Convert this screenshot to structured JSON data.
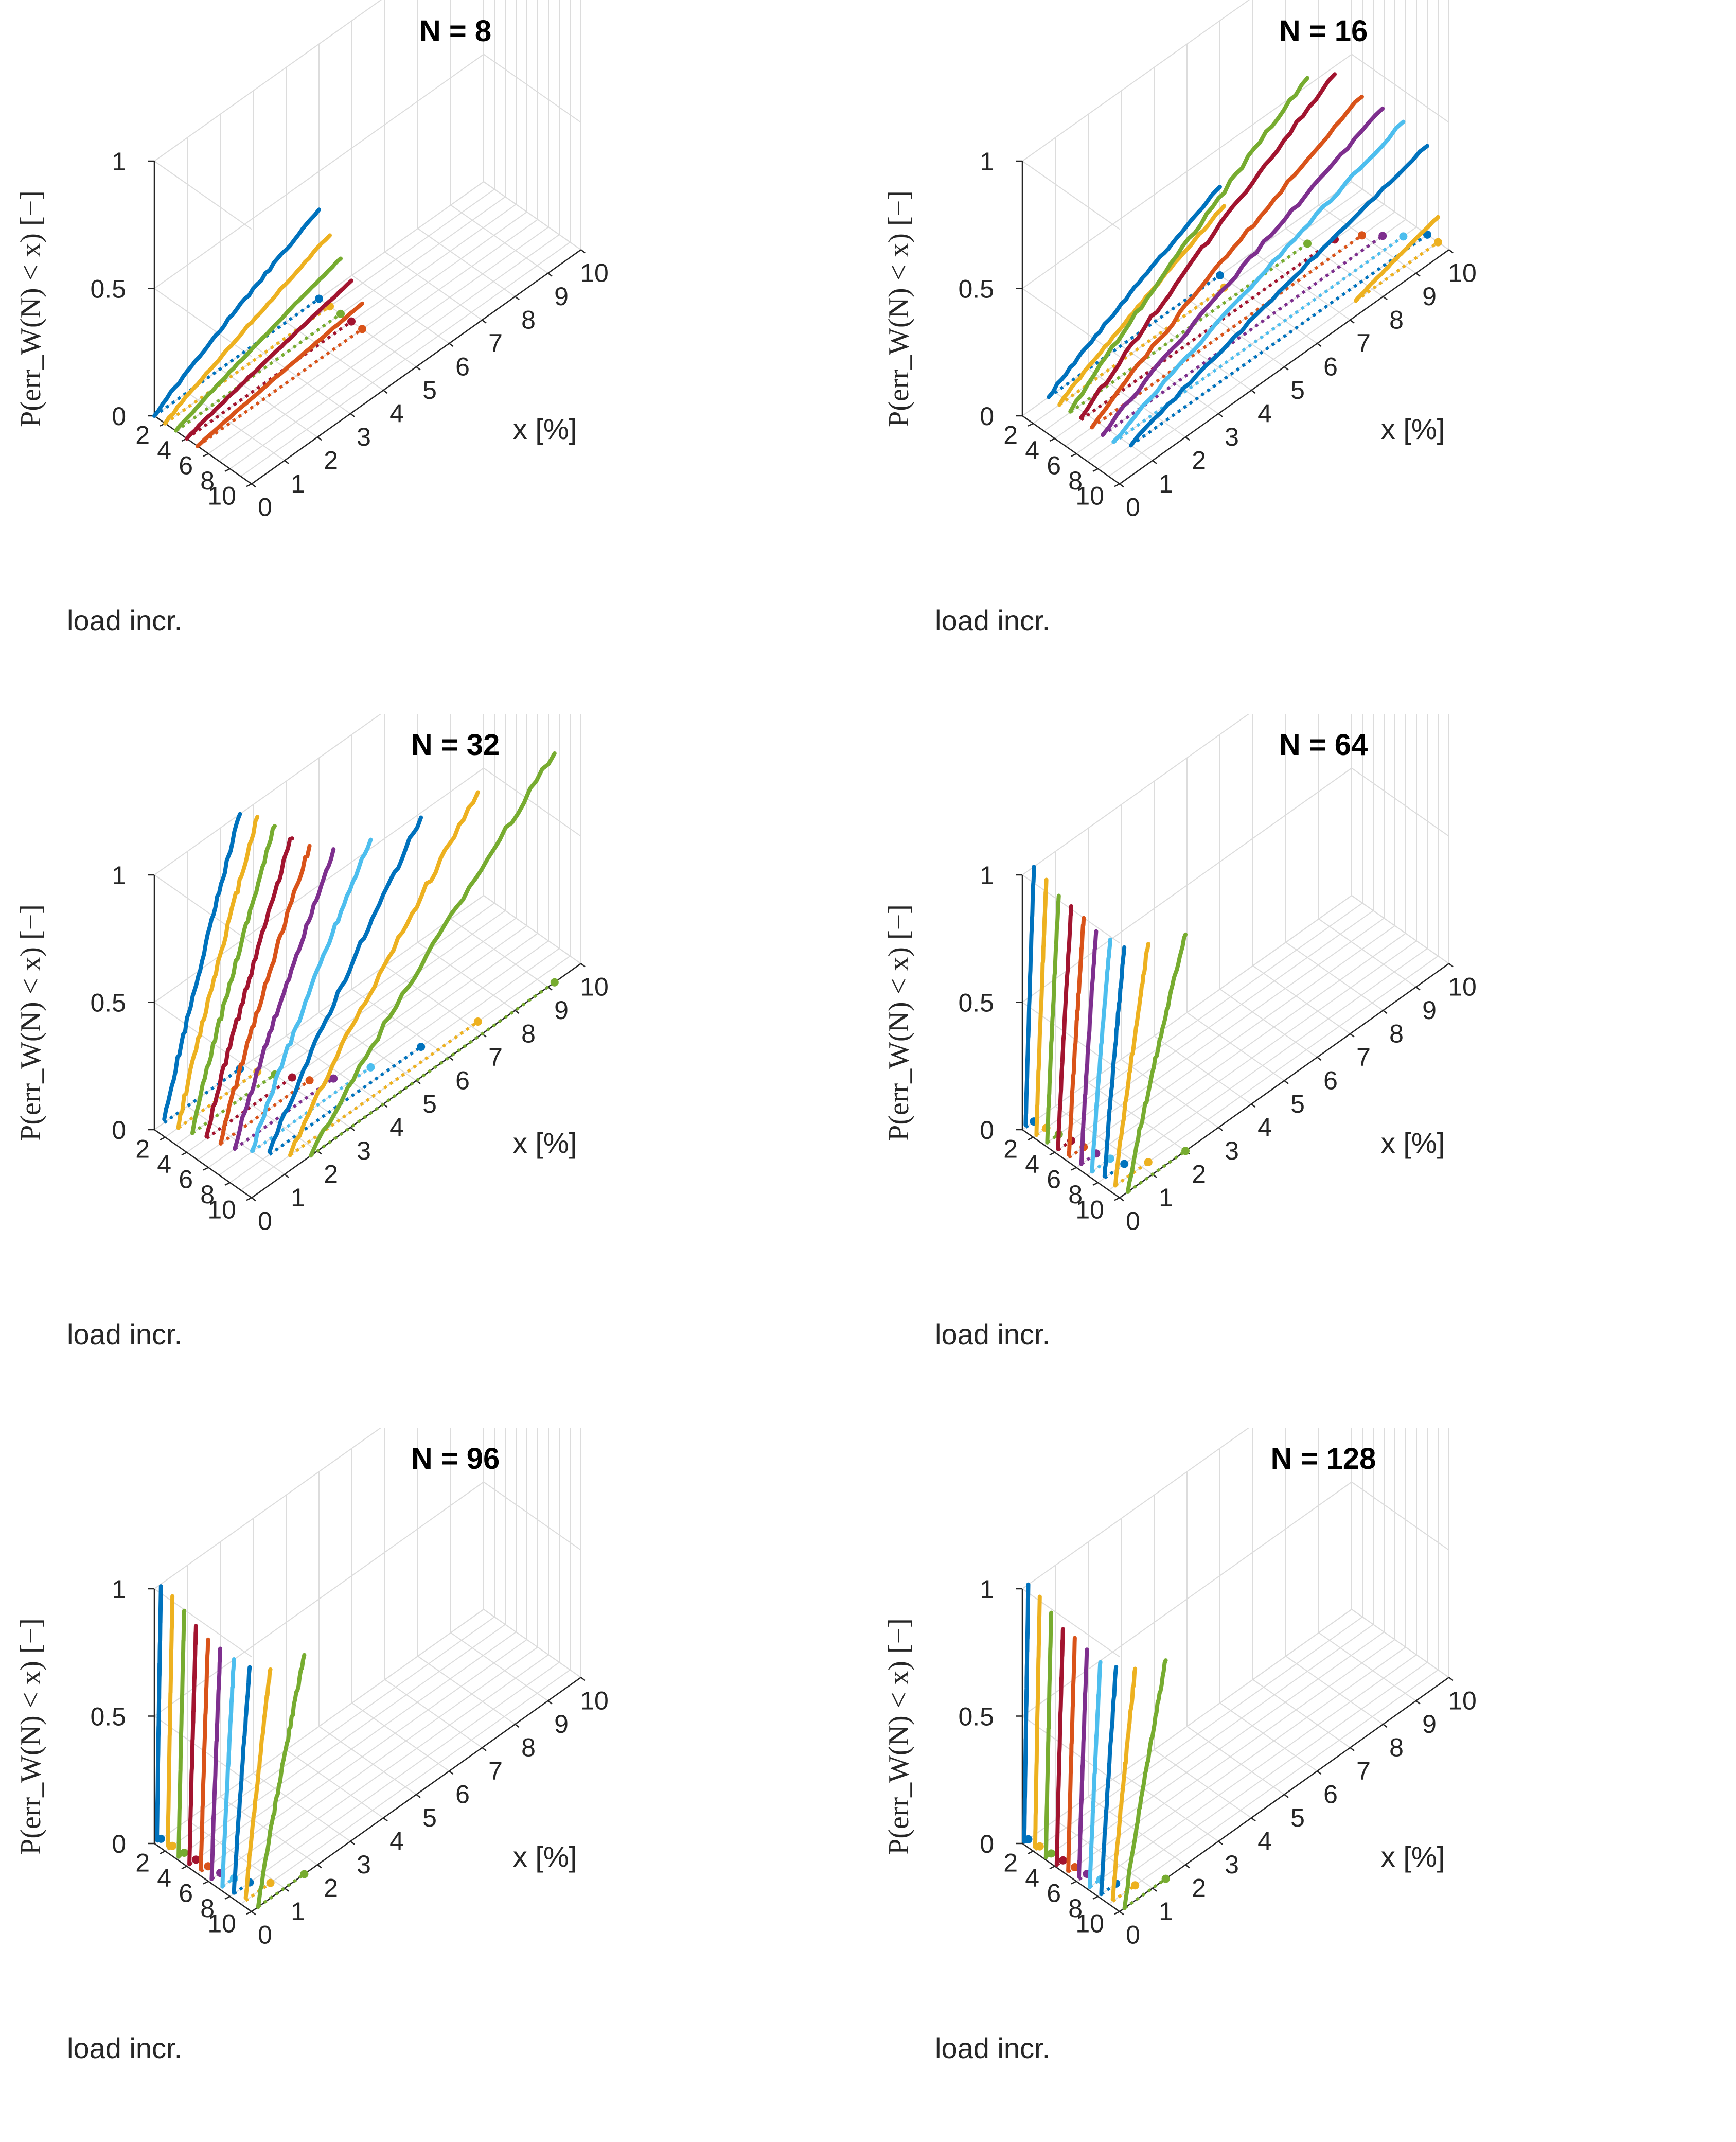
{
  "figure": {
    "ylabel": "P(err_W(N) < x) [−]",
    "xlabel": "x [%]",
    "depth_label": "load incr.",
    "series_colors": [
      "#0072BD",
      "#EDB120",
      "#77AC30",
      "#A2142F",
      "#D95319",
      "#7E2F8E",
      "#4DBEEE",
      "#0072BD",
      "#EDB120",
      "#77AC30"
    ]
  },
  "chart_data": [
    {
      "type": "line3d",
      "title": "N = 8",
      "xlabel": "x [%]",
      "ylabel": "load incr.",
      "zlabel": "P(err_W(N) < x) [−]",
      "xlim": [
        0,
        10
      ],
      "ylim": [
        1,
        10
      ],
      "zlim": [
        0,
        1
      ],
      "xticks": [
        "0",
        "1",
        "2",
        "3",
        "4",
        "5",
        "6",
        "7",
        "8",
        "9",
        "10"
      ],
      "yticks": [
        "2",
        "4",
        "6",
        "8",
        "10"
      ],
      "zticks": [
        "0",
        "0.5",
        "1"
      ],
      "series": [
        {
          "name": "load incr. 1",
          "load_increment": 1,
          "x_start": 0,
          "x_end": 5.0,
          "p_max": 0.35
        },
        {
          "name": "load incr. 2",
          "load_increment": 2,
          "x_start": 0,
          "x_end": 5.0,
          "p_max": 0.28
        },
        {
          "name": "load incr. 3",
          "load_increment": 3,
          "x_start": 0,
          "x_end": 5.0,
          "p_max": 0.22
        },
        {
          "name": "load incr. 4",
          "load_increment": 4,
          "x_start": 0,
          "x_end": 5.0,
          "p_max": 0.16
        },
        {
          "name": "load incr. 5",
          "load_increment": 5,
          "x_start": 0,
          "x_end": 5.0,
          "p_max": 0.1
        }
      ]
    },
    {
      "type": "line3d",
      "title": "N = 16",
      "xlabel": "x [%]",
      "ylabel": "load incr.",
      "zlabel": "P(err_W(N) < x) [−]",
      "xlim": [
        0,
        10
      ],
      "ylim": [
        1,
        10
      ],
      "zlim": [
        0,
        1
      ],
      "xticks": [
        "0",
        "1",
        "2",
        "3",
        "4",
        "5",
        "6",
        "7",
        "8",
        "9",
        "10"
      ],
      "yticks": [
        "2",
        "4",
        "6",
        "8",
        "10"
      ],
      "zticks": [
        "0",
        "0.5",
        "1"
      ],
      "series": [
        {
          "name": "load incr. 1",
          "load_increment": 1,
          "x_start": 0.8,
          "x_end": 6.0,
          "p_max": 0.35
        },
        {
          "name": "load incr. 2",
          "load_increment": 2,
          "x_start": 0.8,
          "x_end": 5.8,
          "p_max": 0.32
        },
        {
          "name": "load incr. 3",
          "load_increment": 3,
          "x_start": 0.8,
          "x_end": 8.0,
          "p_max": 0.65
        },
        {
          "name": "load incr. 4",
          "load_increment": 4,
          "x_start": 0.8,
          "x_end": 8.5,
          "p_max": 0.65
        },
        {
          "name": "load incr. 5",
          "load_increment": 5,
          "x_start": 0.8,
          "x_end": 9.0,
          "p_max": 0.55
        },
        {
          "name": "load incr. 6",
          "load_increment": 6,
          "x_start": 0.8,
          "x_end": 9.3,
          "p_max": 0.5
        },
        {
          "name": "load incr. 7",
          "load_increment": 7,
          "x_start": 0.8,
          "x_end": 9.6,
          "p_max": 0.45
        },
        {
          "name": "load incr. 8",
          "load_increment": 8,
          "x_start": 1.0,
          "x_end": 10.0,
          "p_max": 0.35
        },
        {
          "name": "load incr. 9",
          "load_increment": 9,
          "x_start": 7.5,
          "x_end": 10.0,
          "p_max": 0.1
        }
      ]
    },
    {
      "type": "line3d",
      "title": "N = 32",
      "xlabel": "x [%]",
      "ylabel": "load incr.",
      "zlabel": "P(err_W(N) < x) [−]",
      "xlim": [
        0,
        10
      ],
      "ylim": [
        1,
        10
      ],
      "zlim": [
        0,
        1
      ],
      "xticks": [
        "0",
        "1",
        "2",
        "3",
        "4",
        "5",
        "6",
        "7",
        "8",
        "9",
        "10"
      ],
      "yticks": [
        "2",
        "4",
        "6",
        "8",
        "10"
      ],
      "zticks": [
        "0",
        "0.5",
        "1"
      ],
      "series": [
        {
          "name": "load incr. 1",
          "load_increment": 1,
          "x_start": 0.3,
          "x_end": 2.6,
          "p_max": 1.0
        },
        {
          "name": "load incr. 2",
          "load_increment": 2,
          "x_start": 0.4,
          "x_end": 2.8,
          "p_max": 1.0
        },
        {
          "name": "load incr. 3",
          "load_increment": 3,
          "x_start": 0.5,
          "x_end": 3.0,
          "p_max": 0.98
        },
        {
          "name": "load incr. 4",
          "load_increment": 4,
          "x_start": 0.6,
          "x_end": 3.2,
          "p_max": 0.95
        },
        {
          "name": "load incr. 5",
          "load_increment": 5,
          "x_start": 0.7,
          "x_end": 3.4,
          "p_max": 0.92
        },
        {
          "name": "load incr. 6",
          "load_increment": 6,
          "x_start": 0.8,
          "x_end": 3.8,
          "p_max": 0.9
        },
        {
          "name": "load incr. 7",
          "load_increment": 7,
          "x_start": 1.0,
          "x_end": 4.6,
          "p_max": 0.9
        },
        {
          "name": "load incr. 8",
          "load_increment": 8,
          "x_start": 1.2,
          "x_end": 5.8,
          "p_max": 0.9
        },
        {
          "name": "load incr. 9",
          "load_increment": 9,
          "x_start": 1.5,
          "x_end": 7.2,
          "p_max": 0.9
        },
        {
          "name": "load incr. 10",
          "load_increment": 10,
          "x_start": 1.8,
          "x_end": 9.2,
          "p_max": 0.9
        }
      ]
    },
    {
      "type": "line3d",
      "title": "N = 64",
      "xlabel": "x [%]",
      "ylabel": "load incr.",
      "zlabel": "P(err_W(N) < x) [−]",
      "xlim": [
        0,
        10
      ],
      "ylim": [
        1,
        10
      ],
      "zlim": [
        0,
        1
      ],
      "xticks": [
        "0",
        "1",
        "2",
        "3",
        "4",
        "5",
        "6",
        "7",
        "8",
        "9",
        "10"
      ],
      "yticks": [
        "2",
        "4",
        "6",
        "8",
        "10"
      ],
      "zticks": [
        "0",
        "0.5",
        "1"
      ],
      "series": [
        {
          "name": "load incr. 1",
          "load_increment": 1,
          "x_start": 0.1,
          "x_end": 0.35,
          "p_max": 1.0
        },
        {
          "name": "load incr. 2",
          "load_increment": 2,
          "x_start": 0.1,
          "x_end": 0.4,
          "p_max": 0.98
        },
        {
          "name": "load incr. 3",
          "load_increment": 3,
          "x_start": 0.1,
          "x_end": 0.45,
          "p_max": 0.95
        },
        {
          "name": "load incr. 4",
          "load_increment": 4,
          "x_start": 0.1,
          "x_end": 0.5,
          "p_max": 0.92
        },
        {
          "name": "load incr. 5",
          "load_increment": 5,
          "x_start": 0.1,
          "x_end": 0.55,
          "p_max": 0.9
        },
        {
          "name": "load incr. 6",
          "load_increment": 6,
          "x_start": 0.15,
          "x_end": 0.6,
          "p_max": 0.88
        },
        {
          "name": "load incr. 7",
          "load_increment": 7,
          "x_start": 0.15,
          "x_end": 0.7,
          "p_max": 0.86
        },
        {
          "name": "load incr. 8",
          "load_increment": 8,
          "x_start": 0.2,
          "x_end": 0.8,
          "p_max": 0.85
        },
        {
          "name": "load incr. 9",
          "load_increment": 9,
          "x_start": 0.2,
          "x_end": 1.2,
          "p_max": 0.86
        },
        {
          "name": "load incr. 10",
          "load_increment": 10,
          "x_start": 0.25,
          "x_end": 2.0,
          "p_max": 0.86
        }
      ]
    },
    {
      "type": "line3d",
      "title": "N = 96",
      "xlabel": "x [%]",
      "ylabel": "load incr.",
      "zlabel": "P(err_W(N) < x) [−]",
      "xlim": [
        0,
        10
      ],
      "ylim": [
        1,
        10
      ],
      "zlim": [
        0,
        1
      ],
      "xticks": [
        "0",
        "1",
        "2",
        "3",
        "4",
        "5",
        "6",
        "7",
        "8",
        "9",
        "10"
      ],
      "yticks": [
        "2",
        "4",
        "6",
        "8",
        "10"
      ],
      "zticks": [
        "0",
        "0.5",
        "1"
      ],
      "series": [
        {
          "name": "load incr. 1",
          "load_increment": 1,
          "x_start": 0.08,
          "x_end": 0.2,
          "p_max": 1.0
        },
        {
          "name": "load incr. 2",
          "load_increment": 2,
          "x_start": 0.08,
          "x_end": 0.22,
          "p_max": 0.98
        },
        {
          "name": "load incr. 3",
          "load_increment": 3,
          "x_start": 0.08,
          "x_end": 0.25,
          "p_max": 0.95
        },
        {
          "name": "load incr. 4",
          "load_increment": 4,
          "x_start": 0.08,
          "x_end": 0.28,
          "p_max": 0.92
        },
        {
          "name": "load incr. 5",
          "load_increment": 5,
          "x_start": 0.1,
          "x_end": 0.32,
          "p_max": 0.9
        },
        {
          "name": "load incr. 6",
          "load_increment": 6,
          "x_start": 0.1,
          "x_end": 0.36,
          "p_max": 0.88
        },
        {
          "name": "load incr. 7",
          "load_increment": 7,
          "x_start": 0.1,
          "x_end": 0.45,
          "p_max": 0.86
        },
        {
          "name": "load incr. 8",
          "load_increment": 8,
          "x_start": 0.12,
          "x_end": 0.6,
          "p_max": 0.85
        },
        {
          "name": "load incr. 9",
          "load_increment": 9,
          "x_start": 0.15,
          "x_end": 0.9,
          "p_max": 0.85
        },
        {
          "name": "load incr. 10",
          "load_increment": 10,
          "x_start": 0.2,
          "x_end": 1.6,
          "p_max": 0.86
        }
      ]
    },
    {
      "type": "line3d",
      "title": "N = 128",
      "xlabel": "x [%]",
      "ylabel": "load incr.",
      "zlabel": "P(err_W(N) < x) [−]",
      "xlim": [
        0,
        10
      ],
      "ylim": [
        1,
        10
      ],
      "zlim": [
        0,
        1
      ],
      "xticks": [
        "0",
        "1",
        "2",
        "3",
        "4",
        "5",
        "6",
        "7",
        "8",
        "9",
        "10"
      ],
      "yticks": [
        "2",
        "4",
        "6",
        "8",
        "10"
      ],
      "zticks": [
        "0",
        "0.5",
        "1"
      ],
      "series": [
        {
          "name": "load incr. 1",
          "load_increment": 1,
          "x_start": 0.06,
          "x_end": 0.18,
          "p_max": 1.0
        },
        {
          "name": "load incr. 2",
          "load_increment": 2,
          "x_start": 0.06,
          "x_end": 0.2,
          "p_max": 0.98
        },
        {
          "name": "load incr. 3",
          "load_increment": 3,
          "x_start": 0.06,
          "x_end": 0.22,
          "p_max": 0.95
        },
        {
          "name": "load incr. 4",
          "load_increment": 4,
          "x_start": 0.06,
          "x_end": 0.25,
          "p_max": 0.92
        },
        {
          "name": "load incr. 5",
          "load_increment": 5,
          "x_start": 0.08,
          "x_end": 0.28,
          "p_max": 0.9
        },
        {
          "name": "load incr. 6",
          "load_increment": 6,
          "x_start": 0.08,
          "x_end": 0.32,
          "p_max": 0.88
        },
        {
          "name": "load incr. 7",
          "load_increment": 7,
          "x_start": 0.08,
          "x_end": 0.4,
          "p_max": 0.86
        },
        {
          "name": "load incr. 8",
          "load_increment": 8,
          "x_start": 0.1,
          "x_end": 0.55,
          "p_max": 0.85
        },
        {
          "name": "load incr. 9",
          "load_increment": 9,
          "x_start": 0.12,
          "x_end": 0.8,
          "p_max": 0.85
        },
        {
          "name": "load incr. 10",
          "load_increment": 10,
          "x_start": 0.15,
          "x_end": 1.4,
          "p_max": 0.86
        }
      ]
    }
  ]
}
